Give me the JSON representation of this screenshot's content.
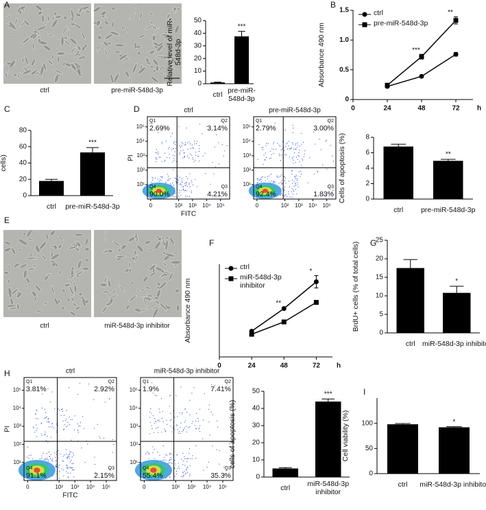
{
  "panel_labels": [
    "A",
    "B",
    "C",
    "D",
    "E",
    "F",
    "G",
    "H",
    "I"
  ],
  "images": [
    {
      "caption": "ctrl"
    },
    {
      "caption": "pre-miR-548d-3p"
    },
    {
      "caption": "ctrl"
    },
    {
      "caption": "miR-548d-3p inhibitor"
    }
  ],
  "chart_data": [
    {
      "type": "bar",
      "ylabel": "Relative level of miR-548d-3p",
      "categories": [
        "ctrl",
        "pre-miR-548d-3p"
      ],
      "values": [
        1,
        37.5
      ],
      "errors": [
        0.3,
        4
      ],
      "color": "#000000",
      "ylim": [
        0,
        50
      ],
      "yticks": [
        0,
        10,
        20,
        30,
        40,
        50
      ],
      "annotation": "***"
    },
    {
      "type": "line",
      "ylabel": "Absorbance 490 nm",
      "xlabel": "h",
      "x": [
        24,
        48,
        72
      ],
      "xlim": [
        0,
        84
      ],
      "xticks": [
        0,
        24,
        48,
        72
      ],
      "ylim": [
        0,
        1.5
      ],
      "yticks": [
        0,
        0.5,
        {
          "value": 1,
          "label": "1.0"
        },
        1.5
      ],
      "series": [
        {
          "name": "ctrl",
          "color": "#000000",
          "marker": "circle",
          "values": [
            0.22,
            0.39,
            0.76
          ],
          "errors": [
            0.01,
            0.01,
            0.03
          ]
        },
        {
          "name": "pre-miR-548d-3p",
          "color": "#000000",
          "marker": "square",
          "values": [
            0.24,
            0.72,
            1.33
          ],
          "errors": [
            0.01,
            0.04,
            0.06
          ]
        }
      ],
      "annotations": [
        "***",
        "**"
      ]
    },
    {
      "type": "bar",
      "ylabel": "BrdU+ cells (% of total cells)",
      "categories": [
        "ctrl",
        "pre-miR-548d-3p"
      ],
      "values": [
        18,
        53
      ],
      "errors": [
        2,
        6
      ],
      "color": "#000000",
      "ylim": [
        0,
        80
      ],
      "yticks": [
        0,
        20,
        40,
        60,
        80
      ],
      "annotation": "***"
    },
    {
      "type": "flow",
      "xlabel": "FITC",
      "ylabel": "PI",
      "xlim": [
        0,
        262144
      ],
      "ylim": [
        0,
        262144
      ],
      "log": true,
      "xticks": [
        0,
        {
          "value": 100,
          "label": "10²"
        },
        {
          "value": 1000,
          "label": "10³"
        },
        {
          "value": 10000,
          "label": "10⁴"
        },
        {
          "value": 100000,
          "label": "10⁵"
        }
      ],
      "yticks": [
        {
          "value": 10,
          "label": "10¹"
        },
        {
          "value": 100,
          "label": "10²"
        },
        {
          "value": 1000,
          "label": "10³"
        },
        {
          "value": 10000,
          "label": "10⁴"
        },
        {
          "value": 100000,
          "label": "10⁵"
        }
      ],
      "quadrant_names": [
        "Q1",
        "Q2",
        "Q3",
        "Q4"
      ],
      "plots": [
        {
          "title": "ctrl",
          "values": [
            2.69,
            3.14,
            4.21,
            90.0
          ],
          "value_labels": [
            "2.69%",
            "3.14%",
            "4.21%",
            "90.0%"
          ]
        },
        {
          "title": "pre-miR-548d-3p",
          "values": [
            2.79,
            3.0,
            1.83,
            92.4
          ],
          "value_labels": [
            "2.79%",
            "3.00%",
            "1.83%",
            "92.4%"
          ]
        }
      ]
    },
    {
      "type": "bar",
      "ylabel": "Cells of apoptosis (%)",
      "categories": [
        "ctrl",
        "pre-miR-548d-3p"
      ],
      "values": [
        6.8,
        4.95
      ],
      "errors": [
        0.3,
        0.2
      ],
      "color": "#000000",
      "ylim": [
        0,
        8
      ],
      "yticks": [
        0,
        2,
        4,
        6,
        8
      ],
      "annotation": "**"
    },
    {
      "type": "line",
      "ylabel": "Absorbance 490 nm",
      "xlabel": "h",
      "x": [
        24,
        48,
        72
      ],
      "xlim": [
        0,
        84
      ],
      "xticks": [
        0,
        24,
        48,
        72
      ],
      "ylim": [
        0,
        0.9
      ],
      "series": [
        {
          "name": "ctrl",
          "color": "#000000",
          "marker": "circle",
          "values": [
            0.25,
            0.47,
            0.73
          ],
          "errors": [
            0.01,
            0.01,
            0.06
          ]
        },
        {
          "name": "miR-548d-3p inhibitor",
          "color": "#000000",
          "marker": "square",
          "values": [
            0.22,
            0.34,
            0.53
          ],
          "errors": [
            0.01,
            0.01,
            0.01
          ]
        }
      ],
      "annotations": [
        "**",
        "*"
      ]
    },
    {
      "type": "bar",
      "ylabel": "BrdU+ cells (% of total cells)",
      "categories": [
        "ctrl",
        "miR-548d-3p inhibitor"
      ],
      "values": [
        17.5,
        10.8
      ],
      "errors": [
        2.3,
        1.8
      ],
      "color": "#000000",
      "ylim": [
        0,
        25
      ],
      "yticks": [
        0,
        5,
        10,
        15,
        20,
        25
      ],
      "annotation": "*"
    },
    {
      "type": "flow",
      "xlabel": "FITC",
      "ylabel": "PI",
      "xlim": [
        0,
        262144
      ],
      "ylim": [
        0,
        262144
      ],
      "log": true,
      "xticks": [
        0,
        {
          "value": 100,
          "label": "10²"
        },
        {
          "value": 1000,
          "label": "10³"
        },
        {
          "value": 10000,
          "label": "10⁴"
        },
        {
          "value": 100000,
          "label": "10⁵"
        }
      ],
      "yticks": [
        {
          "value": 10,
          "label": "10¹"
        },
        {
          "value": 100,
          "label": "10²"
        },
        {
          "value": 1000,
          "label": "10³"
        },
        {
          "value": 10000,
          "label": "10⁴"
        },
        {
          "value": 100000,
          "label": "10⁵"
        }
      ],
      "quadrant_names": [
        "Q1",
        "Q2",
        "Q3",
        "Q4"
      ],
      "plots": [
        {
          "title": "ctrl",
          "values": [
            3.81,
            2.92,
            2.15,
            91.1
          ],
          "value_labels": [
            "3.81%",
            "2.92%",
            "2.15%",
            "91.1%"
          ]
        },
        {
          "title": "miR-548d-3p inhibitor",
          "values": [
            1.9,
            7.41,
            35.3,
            55.4
          ],
          "value_labels": [
            "1.9%",
            "7.41%",
            "35.3%",
            "55.4%"
          ]
        }
      ]
    },
    {
      "type": "bar",
      "ylabel": "cells of apoptosis (%)",
      "categories": [
        "ctrl",
        "miR-548d-3p inhibitor"
      ],
      "values": [
        5,
        44
      ],
      "errors": [
        0.5,
        1.5
      ],
      "color": "#000000",
      "ylim": [
        0,
        50
      ],
      "yticks": [
        0,
        10,
        20,
        30,
        40,
        50
      ],
      "annotation": "***"
    },
    {
      "type": "bar",
      "ylabel": "Cell viability (%)",
      "categories": [
        "ctrl",
        "miR-548d-3p inhibitor"
      ],
      "values": [
        98,
        92
      ],
      "errors": [
        1.5,
        1.2
      ],
      "color": "#000000",
      "ylim": [
        0,
        150
      ],
      "yticks": [
        0,
        50,
        100
      ],
      "annotation": "*"
    }
  ]
}
